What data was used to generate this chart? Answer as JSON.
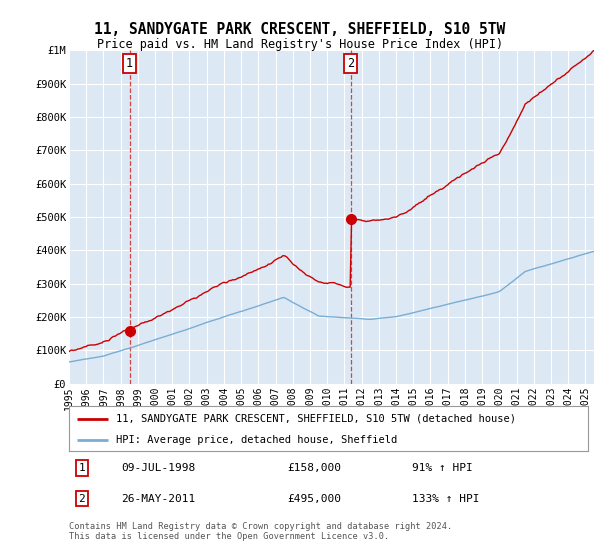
{
  "title": "11, SANDYGATE PARK CRESCENT, SHEFFIELD, S10 5TW",
  "subtitle": "Price paid vs. HM Land Registry's House Price Index (HPI)",
  "plot_bg_color": "#dce9f5",
  "ylim": [
    0,
    1000000
  ],
  "xlim_start": 1995.0,
  "xlim_end": 2025.5,
  "yticks": [
    0,
    100000,
    200000,
    300000,
    400000,
    500000,
    600000,
    700000,
    800000,
    900000,
    1000000
  ],
  "ytick_labels": [
    "£0",
    "£100K",
    "£200K",
    "£300K",
    "£400K",
    "£500K",
    "£600K",
    "£700K",
    "£800K",
    "£900K",
    "£1M"
  ],
  "xticks": [
    1995,
    1996,
    1997,
    1998,
    1999,
    2000,
    2001,
    2002,
    2003,
    2004,
    2005,
    2006,
    2007,
    2008,
    2009,
    2010,
    2011,
    2012,
    2013,
    2014,
    2015,
    2016,
    2017,
    2018,
    2019,
    2020,
    2021,
    2022,
    2023,
    2024,
    2025
  ],
  "red_line_color": "#cc0000",
  "blue_line_color": "#7aadd4",
  "sale1_x": 1998.52,
  "sale1_y": 158000,
  "sale1_label": "1",
  "sale1_date": "09-JUL-1998",
  "sale1_price": "£158,000",
  "sale1_hpi": "91% ↑ HPI",
  "sale2_x": 2011.38,
  "sale2_y": 495000,
  "sale2_label": "2",
  "sale2_date": "26-MAY-2011",
  "sale2_price": "£495,000",
  "sale2_hpi": "133% ↑ HPI",
  "legend_line1": "11, SANDYGATE PARK CRESCENT, SHEFFIELD, S10 5TW (detached house)",
  "legend_line2": "HPI: Average price, detached house, Sheffield",
  "footer": "Contains HM Land Registry data © Crown copyright and database right 2024.\nThis data is licensed under the Open Government Licence v3.0."
}
